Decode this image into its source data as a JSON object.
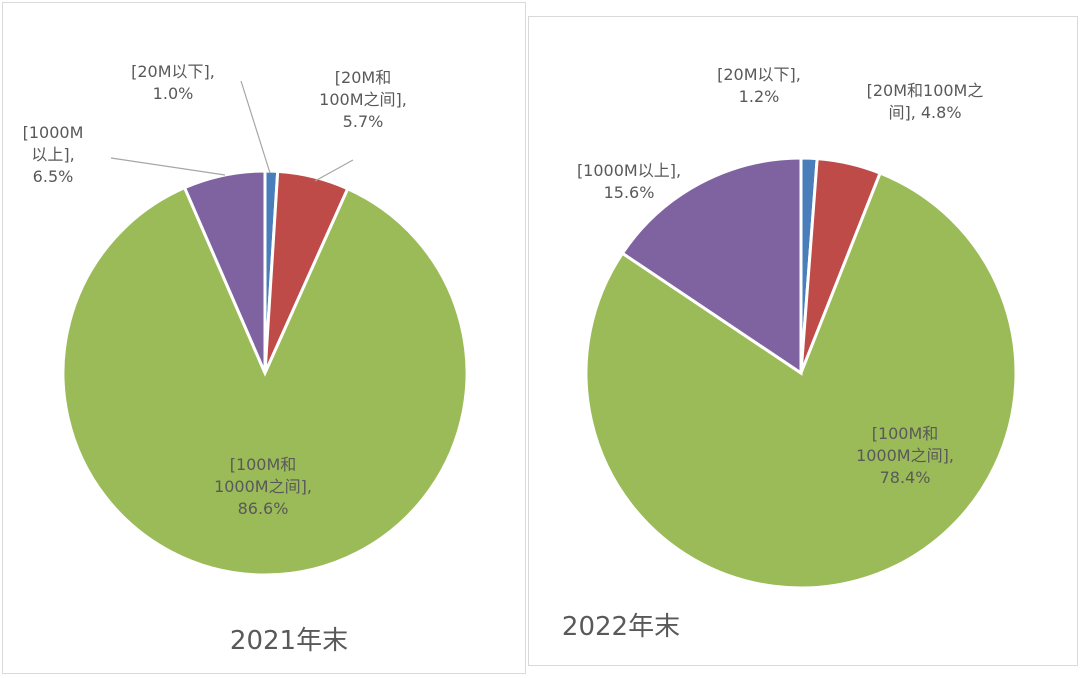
{
  "chart_data": [
    {
      "type": "pie",
      "title": "2021年末",
      "series": [
        {
          "category": "20M以下",
          "value": 1.0,
          "label": [
            "[20M以下],",
            "1.0%"
          ]
        },
        {
          "category": "20M和100M之间",
          "value": 5.7,
          "label": [
            "[20M和",
            "100M之间],",
            "5.7%"
          ]
        },
        {
          "category": "100M和1000M之间",
          "value": 86.6,
          "label": [
            "[100M和",
            "1000M之间],",
            "86.6%"
          ]
        },
        {
          "category": "1000M以上",
          "value": 6.5,
          "label": [
            "[1000M",
            "以上],",
            "6.5%"
          ]
        }
      ]
    },
    {
      "type": "pie",
      "title": "2022年末",
      "series": [
        {
          "category": "20M以下",
          "value": 1.2,
          "label": [
            "[20M以下],",
            "1.2%"
          ]
        },
        {
          "category": "20M和100M之间",
          "value": 4.8,
          "label": [
            "[20M和100M之",
            "间], 4.8%"
          ]
        },
        {
          "category": "100M和1000M之间",
          "value": 78.4,
          "label": [
            "[100M和",
            "1000M之间],",
            "78.4%"
          ]
        },
        {
          "category": "1000M以上",
          "value": 15.6,
          "label": [
            "[1000M以上],",
            "15.6%"
          ]
        }
      ]
    }
  ],
  "colors": [
    "#4a7ebb",
    "#be4b48",
    "#9bbb59",
    "#7f63a1"
  ]
}
